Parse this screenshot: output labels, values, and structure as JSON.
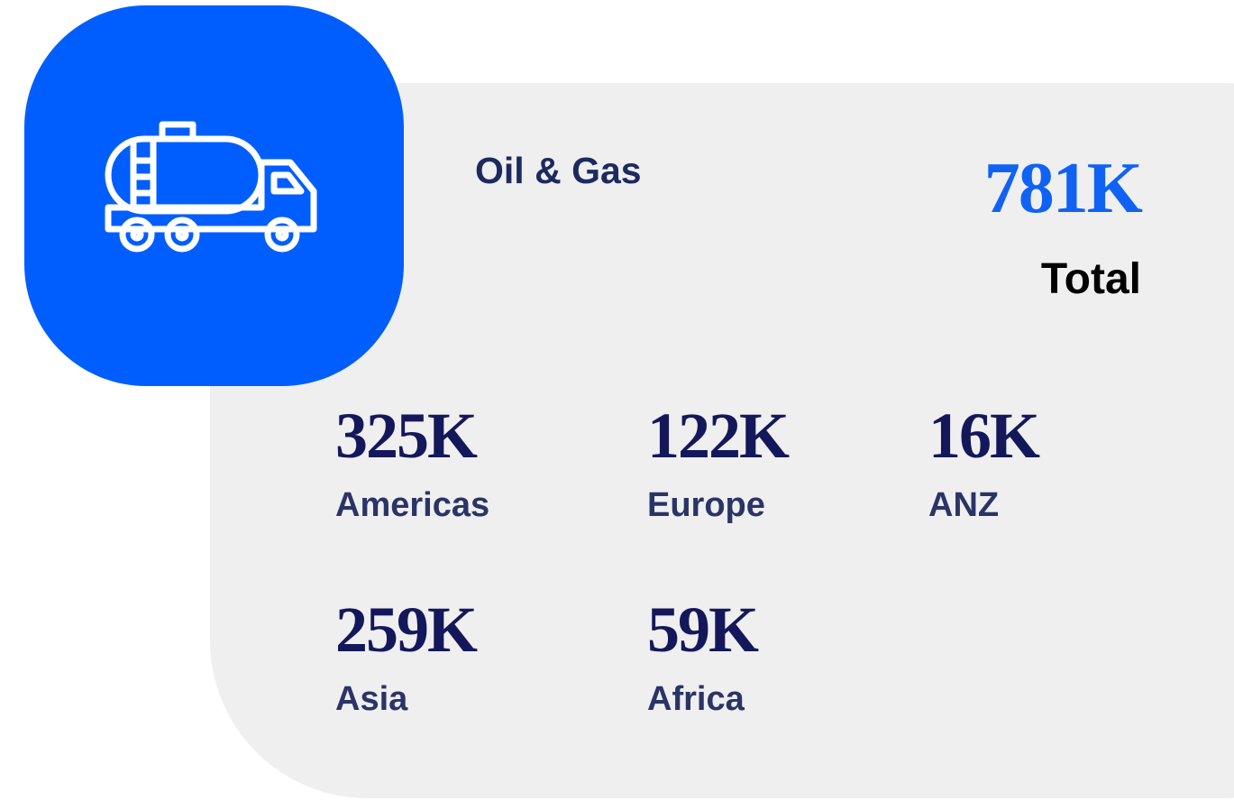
{
  "card": {
    "title": "Oil & Gas",
    "total": {
      "value": "781K",
      "label": "Total"
    },
    "regions": [
      {
        "value": "325K",
        "label": "Americas"
      },
      {
        "value": "122K",
        "label": "Europe"
      },
      {
        "value": "16K",
        "label": "ANZ"
      },
      {
        "value": "259K",
        "label": "Asia"
      },
      {
        "value": "59K",
        "label": "Africa"
      }
    ]
  }
}
